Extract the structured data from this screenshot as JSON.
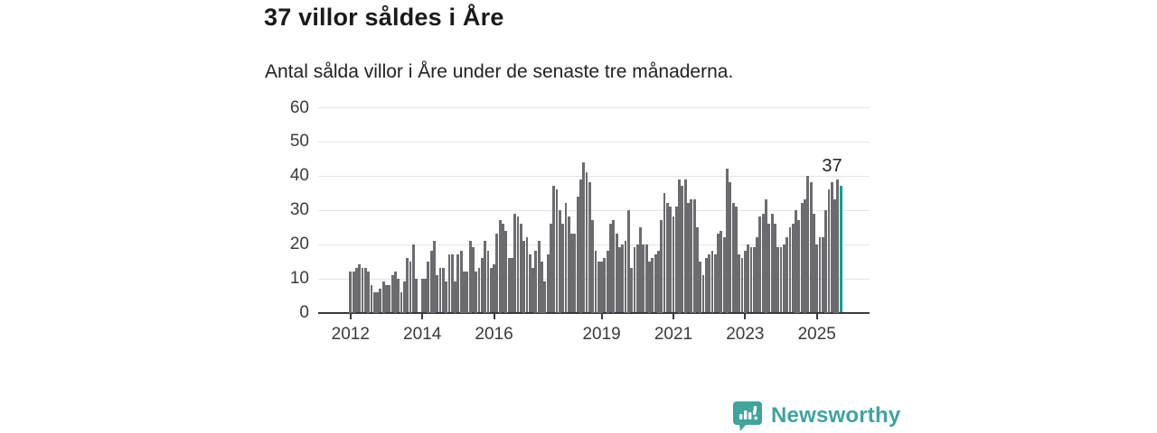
{
  "title": "37 villor såldes i Åre",
  "subtitle": "Antal sålda villor i Åre under de senaste tre månaderna.",
  "annotation": {
    "label": "37"
  },
  "branding": {
    "name": "Newsworthy",
    "color": "#3fa39e"
  },
  "colors": {
    "bar": "#6b6b70",
    "highlight": "#0ca09d",
    "grid": "#e4e4e4",
    "axis": "#3a3a3a",
    "title_text": "#1a1a1a",
    "label_text": "#3a3a3a"
  },
  "chart_data": {
    "type": "bar",
    "title": "37 villor såldes i Åre",
    "subtitle": "Antal sålda villor i Åre under de senaste tre månaderna.",
    "xlabel": "",
    "ylabel": "",
    "x_start_month": "2012-01",
    "x_end_month": "2025-09",
    "ylim": [
      0,
      60
    ],
    "yticks": [
      0,
      10,
      20,
      30,
      40,
      50,
      60
    ],
    "grid": "horizontal",
    "legend": "none",
    "highlight_last": true,
    "highlight_last_value": 37,
    "xticks": [
      {
        "label": "2012",
        "month_index": 0
      },
      {
        "label": "2014",
        "month_index": 24
      },
      {
        "label": "2016",
        "month_index": 48
      },
      {
        "label": "2019",
        "month_index": 84
      },
      {
        "label": "2021",
        "month_index": 108
      },
      {
        "label": "2023",
        "month_index": 132
      },
      {
        "label": "2025",
        "month_index": 156
      }
    ],
    "values": [
      12,
      12,
      13,
      14,
      13,
      13,
      12,
      8,
      6,
      6,
      7,
      9,
      8,
      8,
      11,
      12,
      10,
      6,
      9,
      16,
      15,
      20,
      10,
      0,
      10,
      10,
      15,
      18,
      21,
      11,
      13,
      13,
      9,
      17,
      17,
      9,
      17,
      18,
      12,
      12,
      21,
      19,
      12,
      13,
      16,
      21,
      18,
      13,
      14,
      23,
      27,
      26,
      24,
      16,
      16,
      29,
      28,
      26,
      21,
      22,
      17,
      13,
      18,
      21,
      15,
      9,
      17,
      26,
      37,
      36,
      30,
      26,
      32,
      28,
      23,
      23,
      34,
      39,
      44,
      41,
      38,
      27,
      18,
      15,
      15,
      16,
      18,
      26,
      27,
      23,
      19,
      20,
      21,
      30,
      13,
      19,
      20,
      25,
      20,
      20,
      15,
      16,
      17,
      18,
      27,
      35,
      32,
      31,
      28,
      31,
      39,
      37,
      39,
      32,
      33,
      33,
      25,
      15,
      11,
      16,
      17,
      18,
      17,
      23,
      24,
      22,
      42,
      38,
      32,
      31,
      17,
      16,
      18,
      20,
      19,
      19,
      22,
      28,
      29,
      33,
      26,
      29,
      26,
      19,
      19,
      20,
      22,
      25,
      26,
      30,
      27,
      32,
      33,
      40,
      38,
      29,
      20,
      22,
      22,
      30,
      36,
      38,
      33,
      39,
      37
    ]
  }
}
